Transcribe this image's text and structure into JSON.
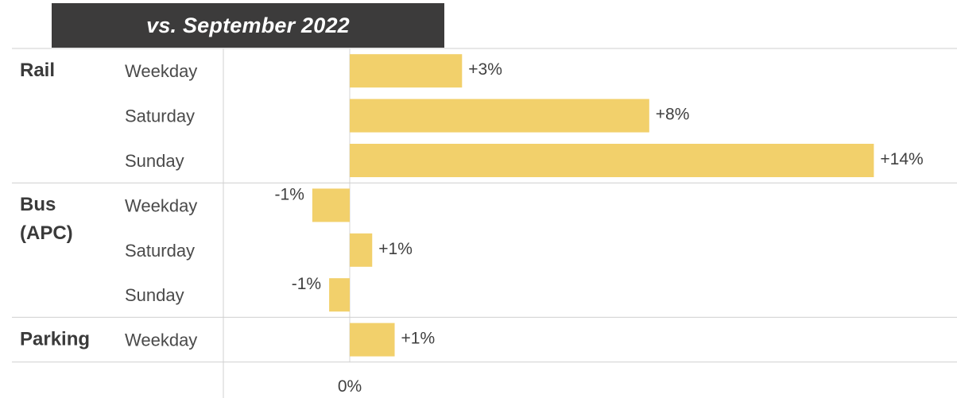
{
  "title": "vs. September 2022",
  "chart_data": {
    "type": "bar",
    "orientation": "horizontal",
    "xlim": [
      -1.85,
      18.9
    ],
    "x_ticks": [
      {
        "value": 0,
        "label": "0%"
      }
    ],
    "bar_color": "#f2d06b",
    "groups": [
      {
        "name": "Rail",
        "rows": [
          {
            "category": "Weekday",
            "value": 3,
            "label": "+3%"
          },
          {
            "category": "Saturday",
            "value": 8,
            "label": "+8%"
          },
          {
            "category": "Sunday",
            "value": 14,
            "label": "+14%"
          }
        ]
      },
      {
        "name": "Bus (APC)",
        "rows": [
          {
            "category": "Weekday",
            "value": -1,
            "label": "-1%"
          },
          {
            "category": "Saturday",
            "value": 0.6,
            "label": "+1%"
          },
          {
            "category": "Sunday",
            "value": -0.55,
            "label": "-1%"
          }
        ]
      },
      {
        "name": "Parking",
        "rows": [
          {
            "category": "Weekday",
            "value": 1.2,
            "label": "+1%"
          }
        ]
      }
    ]
  }
}
